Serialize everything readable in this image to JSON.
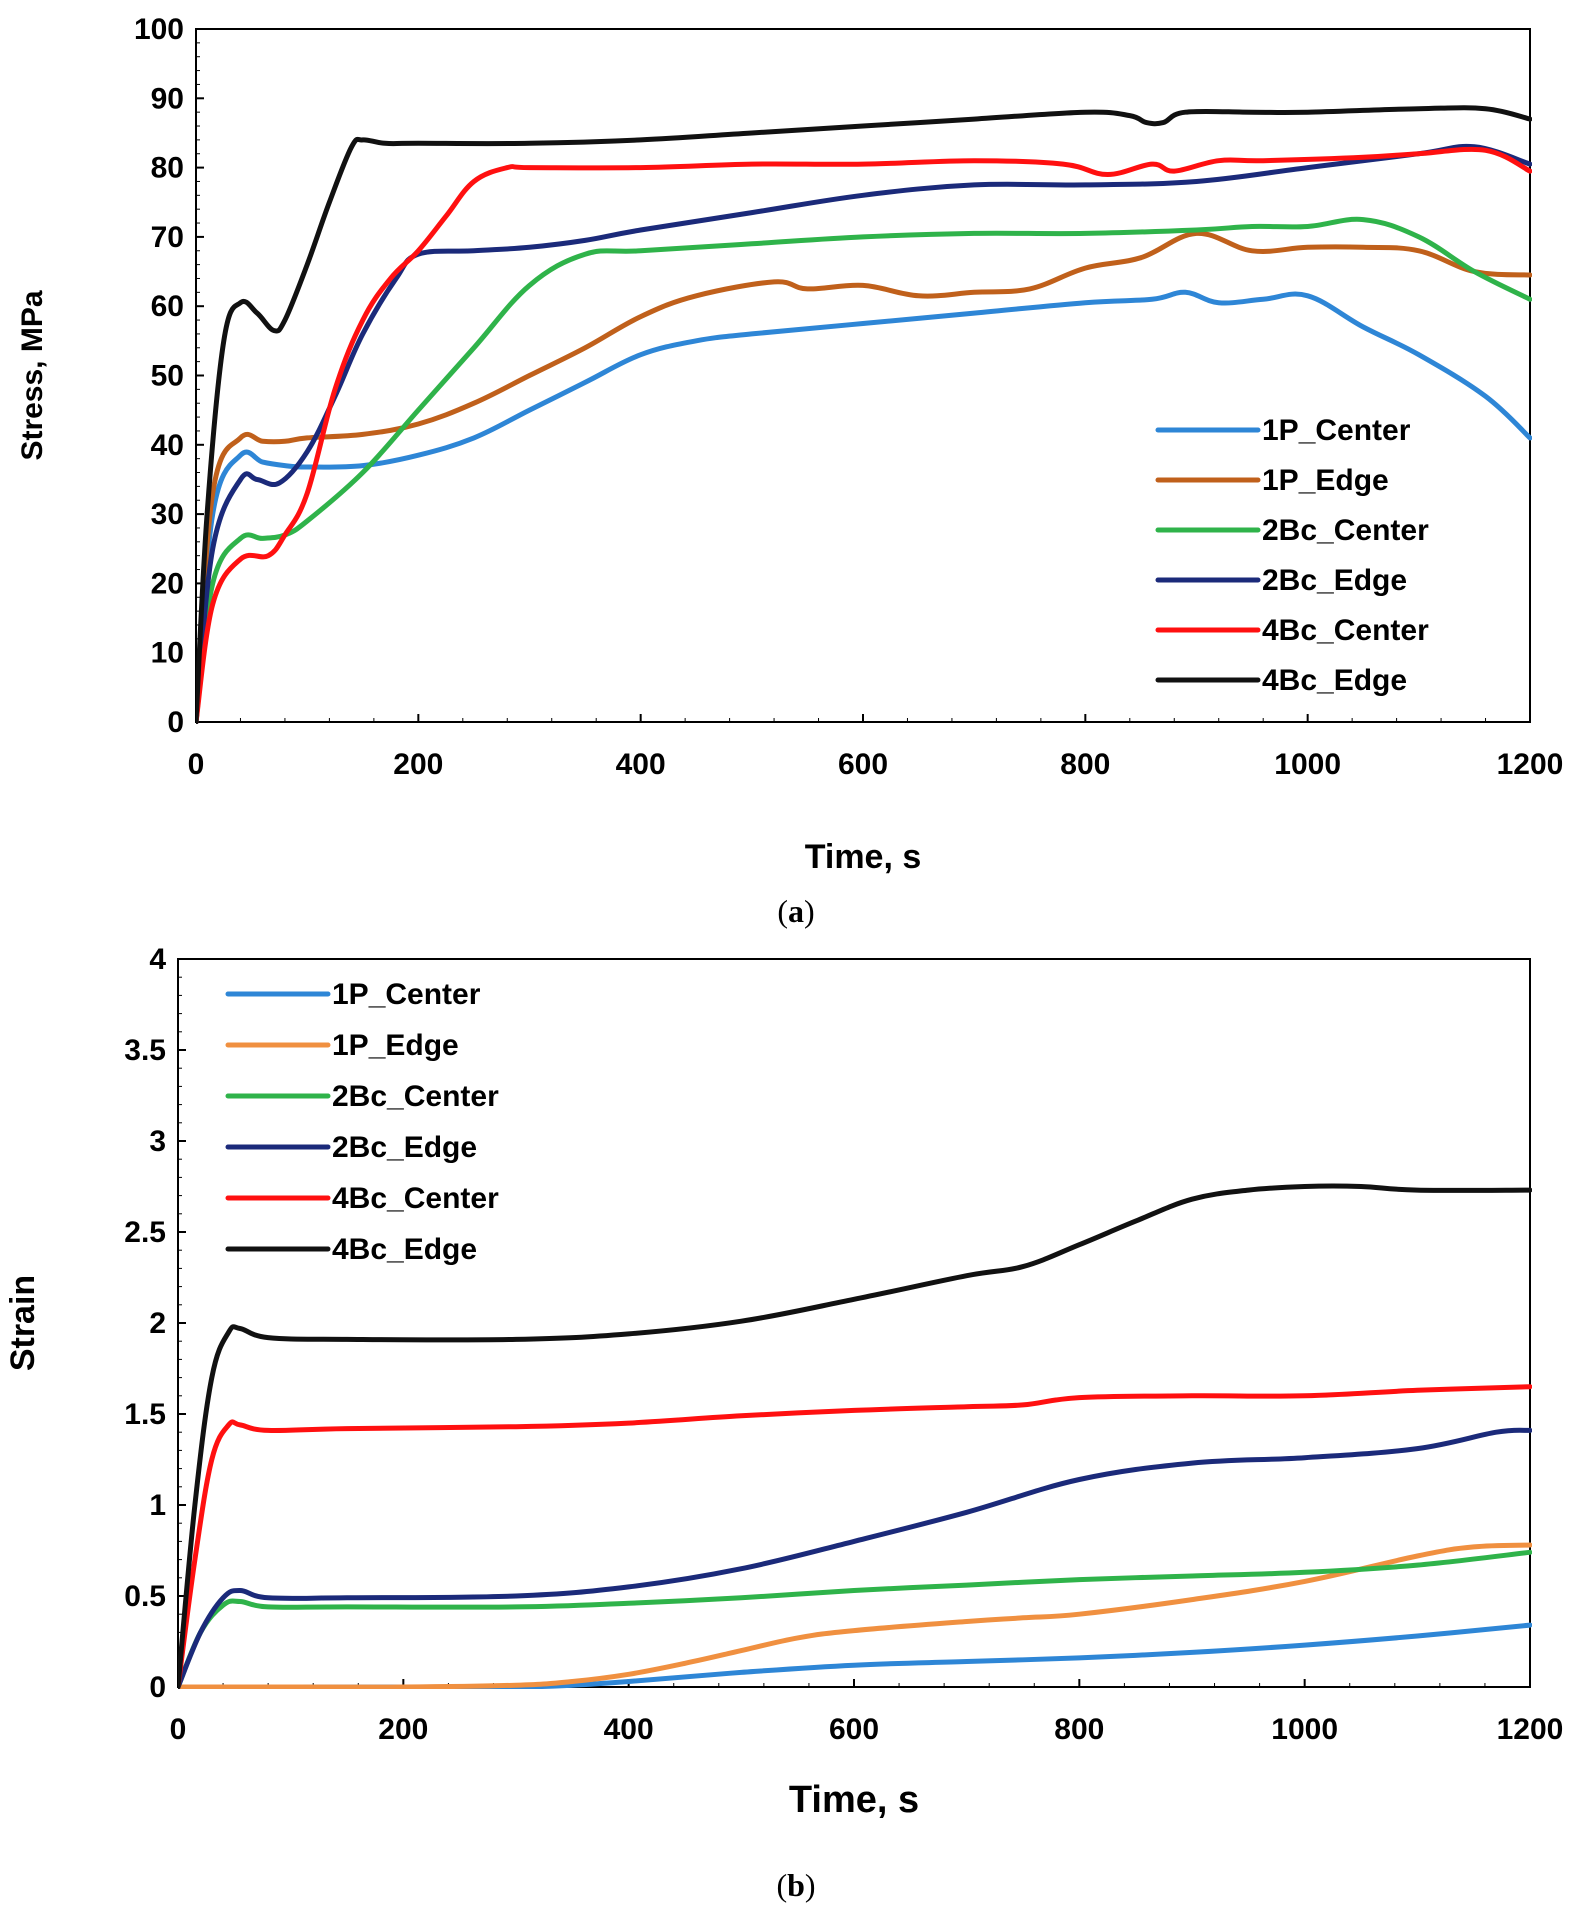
{
  "chart_data": [
    {
      "type": "line",
      "panel_label": "a",
      "xlabel": "Time, s",
      "ylabel": "Stress, MPa",
      "xlim": [
        0,
        1200
      ],
      "ylim": [
        0,
        100
      ],
      "x_ticks": [
        0,
        200,
        400,
        600,
        800,
        1000,
        1200
      ],
      "y_ticks": [
        0,
        10,
        20,
        30,
        40,
        50,
        60,
        70,
        80,
        90,
        100
      ],
      "grid": false,
      "legend_position": "bottom-right",
      "series": [
        {
          "name": "1P_Center",
          "color": "#2E86D6",
          "x": [
            0,
            15,
            40,
            60,
            80,
            100,
            150,
            200,
            250,
            300,
            350,
            400,
            450,
            500,
            600,
            700,
            800,
            860,
            890,
            920,
            960,
            1000,
            1050,
            1100,
            1160,
            1200
          ],
          "y": [
            0,
            30,
            38.5,
            37.5,
            37,
            36.8,
            37,
            38.5,
            41,
            45,
            49,
            53,
            55,
            56,
            57.5,
            59,
            60.5,
            61,
            62,
            60.5,
            61,
            61.5,
            57,
            53,
            47,
            41
          ]
        },
        {
          "name": "1P_Edge",
          "color": "#C0601B",
          "x": [
            0,
            15,
            40,
            60,
            80,
            100,
            150,
            200,
            250,
            300,
            350,
            400,
            450,
            520,
            550,
            600,
            650,
            700,
            750,
            800,
            850,
            900,
            950,
            1000,
            1050,
            1100,
            1150,
            1200
          ],
          "y": [
            0,
            33,
            41,
            40.5,
            40.5,
            41,
            41.5,
            43,
            46,
            50,
            54,
            58.5,
            61.5,
            63.5,
            62.5,
            63,
            61.5,
            62,
            62.5,
            65.5,
            67,
            70.5,
            68,
            68.5,
            68.5,
            68,
            65,
            64.5
          ]
        },
        {
          "name": "2Bc_Center",
          "color": "#2FB34A",
          "x": [
            0,
            15,
            40,
            60,
            80,
            100,
            150,
            200,
            250,
            300,
            350,
            400,
            500,
            600,
            700,
            800,
            900,
            950,
            1000,
            1050,
            1100,
            1150,
            1200
          ],
          "y": [
            0,
            20,
            26.5,
            26.5,
            27,
            29,
            36,
            45,
            54,
            63,
            67.5,
            68,
            69,
            70,
            70.5,
            70.5,
            71,
            71.5,
            71.5,
            72.5,
            70,
            65,
            61
          ]
        },
        {
          "name": "2Bc_Edge",
          "color": "#1B2A7A",
          "x": [
            0,
            15,
            40,
            55,
            75,
            100,
            125,
            150,
            180,
            200,
            250,
            300,
            350,
            400,
            500,
            600,
            700,
            800,
            900,
            1000,
            1100,
            1150,
            1200
          ],
          "y": [
            0,
            25,
            35,
            35,
            34.5,
            39,
            47,
            56,
            64,
            67.5,
            68,
            68.5,
            69.5,
            71,
            73.5,
            76,
            77.5,
            77.5,
            78,
            80,
            82,
            83,
            80.5
          ]
        },
        {
          "name": "4Bc_Center",
          "color": "#FF1010",
          "x": [
            0,
            15,
            40,
            65,
            80,
            100,
            125,
            150,
            175,
            200,
            225,
            250,
            280,
            300,
            400,
            500,
            600,
            700,
            780,
            820,
            860,
            880,
            920,
            960,
            1050,
            1100,
            1160,
            1200
          ],
          "y": [
            0,
            17,
            23.5,
            24,
            27,
            33,
            48,
            58,
            64,
            68,
            73,
            78,
            80,
            80,
            80,
            80.5,
            80.5,
            81,
            80.5,
            79,
            80.5,
            79.5,
            81,
            81,
            81.5,
            82,
            82.5,
            79.5
          ]
        },
        {
          "name": "4Bc_Edge",
          "color": "#111111",
          "x": [
            0,
            10,
            25,
            40,
            55,
            70,
            80,
            100,
            120,
            140,
            150,
            170,
            200,
            300,
            400,
            500,
            600,
            700,
            800,
            840,
            855,
            870,
            890,
            950,
            1000,
            1100,
            1160,
            1200
          ],
          "y": [
            0,
            30,
            55,
            60.5,
            59,
            56.5,
            58,
            66,
            75,
            83,
            84,
            83.5,
            83.5,
            83.5,
            84,
            85,
            86,
            87,
            88,
            87.5,
            86.5,
            86.5,
            88,
            88,
            88,
            88.5,
            88.5,
            87
          ]
        }
      ]
    },
    {
      "type": "line",
      "panel_label": "b",
      "xlabel": "Time, s",
      "ylabel": "Strain",
      "xlim": [
        0,
        1200
      ],
      "ylim": [
        0,
        4
      ],
      "x_ticks": [
        0,
        200,
        400,
        600,
        800,
        1000,
        1200
      ],
      "y_ticks": [
        0,
        0.5,
        1,
        1.5,
        2,
        2.5,
        3,
        3.5,
        4
      ],
      "y_tick_labels": [
        "0",
        "0.5",
        "1",
        "1.5",
        "2",
        "2.5",
        "3",
        "3.5",
        "4"
      ],
      "grid": false,
      "legend_position": "top-left",
      "series": [
        {
          "name": "1P_Center",
          "color": "#2E86D6",
          "x": [
            0,
            50,
            100,
            200,
            300,
            350,
            400,
            500,
            600,
            700,
            800,
            900,
            1000,
            1100,
            1200
          ],
          "y": [
            0,
            0,
            0,
            0,
            0,
            0.01,
            0.03,
            0.08,
            0.12,
            0.14,
            0.16,
            0.19,
            0.23,
            0.28,
            0.34
          ]
        },
        {
          "name": "1P_Edge",
          "color": "#F09040",
          "x": [
            0,
            50,
            100,
            200,
            300,
            350,
            400,
            450,
            500,
            550,
            600,
            700,
            750,
            800,
            900,
            1000,
            1100,
            1150,
            1200
          ],
          "y": [
            0,
            0,
            0,
            0,
            0.01,
            0.03,
            0.07,
            0.13,
            0.2,
            0.27,
            0.31,
            0.36,
            0.38,
            0.4,
            0.48,
            0.58,
            0.72,
            0.77,
            0.78
          ]
        },
        {
          "name": "2Bc_Center",
          "color": "#2FB34A",
          "x": [
            0,
            20,
            40,
            55,
            80,
            150,
            300,
            400,
            500,
            600,
            700,
            800,
            900,
            1000,
            1100,
            1200
          ],
          "y": [
            0,
            0.3,
            0.45,
            0.47,
            0.44,
            0.44,
            0.44,
            0.46,
            0.49,
            0.53,
            0.56,
            0.59,
            0.61,
            0.63,
            0.67,
            0.74
          ]
        },
        {
          "name": "2Bc_Edge",
          "color": "#1B2A7A",
          "x": [
            0,
            20,
            40,
            55,
            80,
            150,
            300,
            400,
            500,
            600,
            700,
            800,
            900,
            1000,
            1100,
            1170,
            1200
          ],
          "y": [
            0,
            0.3,
            0.49,
            0.53,
            0.49,
            0.49,
            0.5,
            0.55,
            0.65,
            0.8,
            0.96,
            1.14,
            1.23,
            1.26,
            1.31,
            1.4,
            1.41
          ]
        },
        {
          "name": "4Bc_Center",
          "color": "#FF1010",
          "x": [
            0,
            15,
            30,
            45,
            55,
            80,
            150,
            300,
            400,
            500,
            600,
            700,
            750,
            800,
            900,
            1000,
            1100,
            1200
          ],
          "y": [
            0,
            0.7,
            1.25,
            1.44,
            1.44,
            1.41,
            1.42,
            1.43,
            1.45,
            1.49,
            1.52,
            1.54,
            1.55,
            1.59,
            1.6,
            1.6,
            1.63,
            1.65
          ]
        },
        {
          "name": "4Bc_Edge",
          "color": "#111111",
          "x": [
            0,
            15,
            30,
            45,
            55,
            80,
            150,
            300,
            400,
            500,
            600,
            700,
            750,
            800,
            850,
            900,
            950,
            1000,
            1050,
            1100,
            1200
          ],
          "y": [
            0,
            1.0,
            1.7,
            1.95,
            1.97,
            1.92,
            1.91,
            1.91,
            1.94,
            2.01,
            2.13,
            2.26,
            2.31,
            2.43,
            2.56,
            2.68,
            2.73,
            2.75,
            2.75,
            2.73,
            2.73
          ]
        }
      ]
    }
  ],
  "captions": {
    "a": {
      "open": "(",
      "letter": "a",
      "close": ")"
    },
    "b": {
      "open": "(",
      "letter": "b",
      "close": ")"
    }
  }
}
